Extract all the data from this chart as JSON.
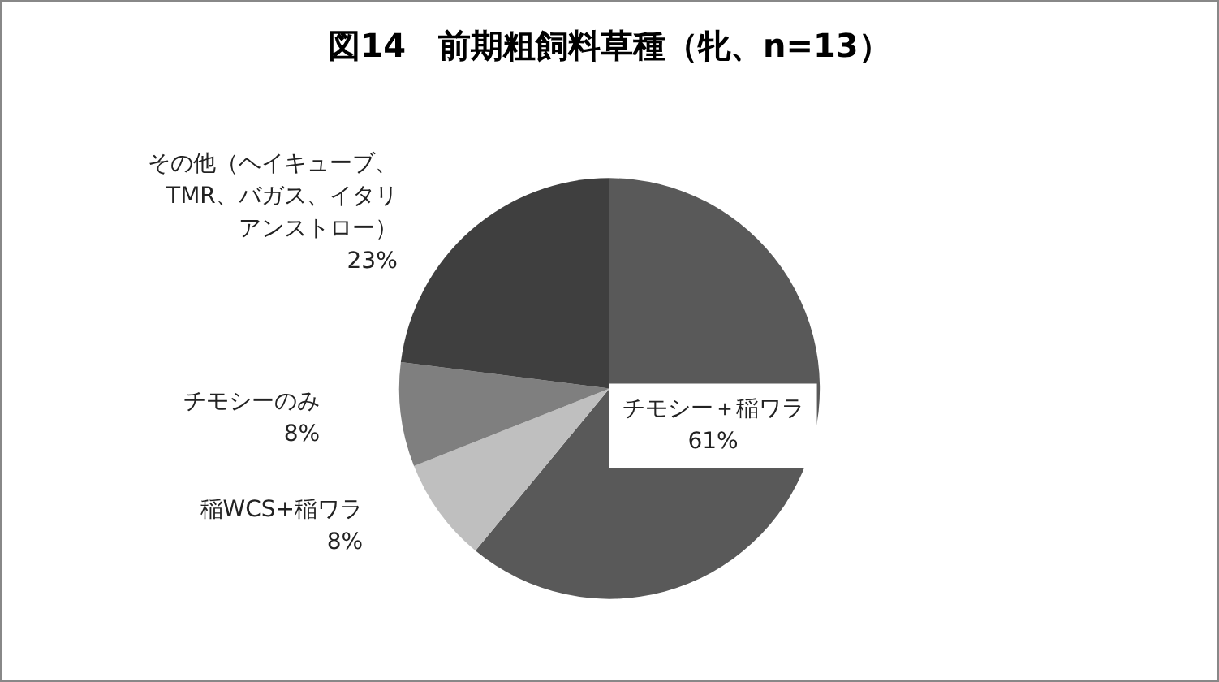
{
  "chart_data": {
    "type": "pie",
    "title": "図14　前期粗飼料草種（牝、n=13）",
    "categories": [
      "チモシー＋稲ワラ",
      "稲WCS+稲ワラ",
      "チモシーのみ",
      "その他（ヘイキューブ、TMR、バガス、イタリアンストロー）"
    ],
    "values": [
      61,
      8,
      8,
      23
    ],
    "colors": [
      "#595959",
      "#bfbfbf",
      "#7f7f7f",
      "#3f3f3f"
    ],
    "value_labels": [
      "61%",
      "8%",
      "8%",
      "23%"
    ]
  }
}
